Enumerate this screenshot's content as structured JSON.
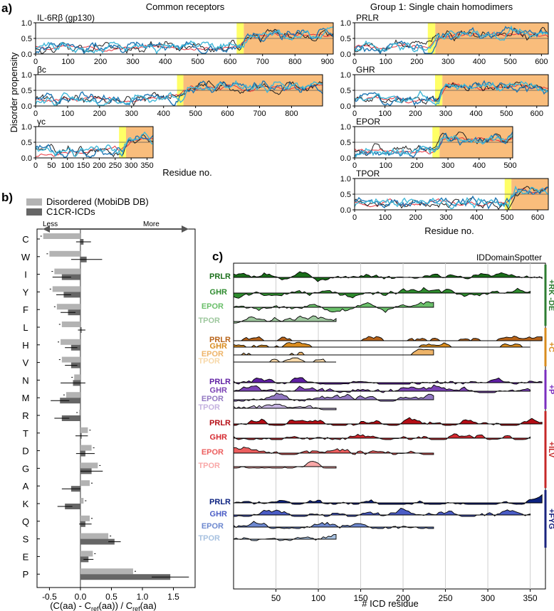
{
  "panel_a": {
    "label": "a)",
    "left_title": "Common receptors",
    "right_title": "Group 1: Single chain homodimers",
    "y_axis_label": "Disorder propensity",
    "x_axis_label": "Residue no.",
    "chart_data": {
      "type": "line",
      "ylim": [
        0,
        1
      ],
      "y_ticks": [
        "0.0",
        "0.5",
        "1.0"
      ],
      "threshold": 0.5,
      "line_colors": [
        "#e8303a",
        "#1f1f1f",
        "#1f77b4",
        "#3fb7d8"
      ],
      "shade_colors": {
        "transmembrane": "#ffff66",
        "icd": "#f9bd7c"
      },
      "receptors": [
        {
          "name": "IL-6Rβ (gp130)",
          "length": 918,
          "tm_start": 620,
          "icd_start": 642,
          "x_ticks": [
            "0",
            "100",
            "200",
            "300",
            "400",
            "500",
            "600",
            "700",
            "800",
            "900"
          ]
        },
        {
          "name": "βc",
          "length": 897,
          "tm_start": 442,
          "icd_start": 462,
          "x_ticks": [
            "0",
            "100",
            "200",
            "300",
            "400",
            "500",
            "600",
            "700",
            "800"
          ]
        },
        {
          "name": "γc",
          "length": 369,
          "tm_start": 262,
          "icd_start": 284,
          "x_ticks": [
            "0",
            "50",
            "100",
            "150",
            "200",
            "250",
            "300",
            "350"
          ]
        },
        {
          "name": "PRLR",
          "length": 622,
          "tm_start": 235,
          "icd_start": 259,
          "x_ticks": [
            "0",
            "100",
            "200",
            "300",
            "400",
            "500",
            "600"
          ]
        },
        {
          "name": "GHR",
          "length": 638,
          "tm_start": 265,
          "icd_start": 289,
          "x_ticks": [
            "0",
            "100",
            "200",
            "300",
            "400",
            "500",
            "600"
          ]
        },
        {
          "name": "EPOR",
          "length": 508,
          "tm_start": 250,
          "icd_start": 273,
          "x_ticks": [
            "0",
            "100",
            "200",
            "300",
            "400",
            "500"
          ]
        },
        {
          "name": "TPOR",
          "length": 635,
          "tm_start": 492,
          "icd_start": 514,
          "x_ticks": [
            "0",
            "100",
            "200",
            "300",
            "400",
            "500",
            "600"
          ]
        }
      ]
    }
  },
  "panel_b": {
    "label": "b)",
    "legend": [
      {
        "label": "Disordered (MobiDB DB)",
        "color": "#b3b3b3"
      },
      {
        "label": "C1CR-ICDs",
        "color": "#666666"
      }
    ],
    "arrow_less": "Less",
    "arrow_more": "More",
    "x_axis_label": "(C(aa) - Cref(aa)) / Cref(aa)",
    "chart_data": {
      "type": "bar",
      "orientation": "horizontal",
      "xlim": [
        -0.7,
        1.85
      ],
      "x_ticks": [
        "-0.5",
        "0.0",
        "0.5",
        "1.0",
        "1.5"
      ],
      "categories": [
        "C",
        "W",
        "I",
        "Y",
        "F",
        "L",
        "H",
        "V",
        "N",
        "M",
        "R",
        "T",
        "D",
        "G",
        "A",
        "K",
        "Q",
        "S",
        "E",
        "P"
      ],
      "series": [
        {
          "name": "Disordered (MobiDB DB)",
          "values": [
            -0.6,
            -0.5,
            -0.42,
            -0.45,
            -0.38,
            -0.3,
            -0.32,
            -0.3,
            -0.1,
            -0.23,
            -0.02,
            0.12,
            0.18,
            0.28,
            0.15,
            0.05,
            0.15,
            0.45,
            0.2,
            0.85
          ]
        },
        {
          "name": "C1CR-ICDs",
          "values": [
            0.05,
            0.1,
            -0.3,
            -0.27,
            -0.2,
            0.02,
            -0.15,
            -0.15,
            -0.12,
            -0.33,
            -0.3,
            0.02,
            0.08,
            0.18,
            -0.15,
            -0.25,
            0.08,
            0.55,
            0.13,
            1.45
          ],
          "errors": [
            0.12,
            0.25,
            0.15,
            0.12,
            0.12,
            0.06,
            0.1,
            0.1,
            0.2,
            0.15,
            0.12,
            0.1,
            0.15,
            0.18,
            0.15,
            0.12,
            0.1,
            0.1,
            0.08,
            0.3
          ]
        }
      ]
    }
  },
  "panel_c": {
    "label": "c)",
    "tool_name": "IDDomainSpotter",
    "x_axis_label": "# ICD residue",
    "chart_data": {
      "type": "area",
      "xlim": [
        0,
        368
      ],
      "x_ticks": [
        "50",
        "100",
        "150",
        "200",
        "250",
        "300",
        "350"
      ],
      "receptor_lengths": {
        "PRLR": 364,
        "GHR": 350,
        "EPOR": 236,
        "TPOR": 121
      },
      "groups": [
        {
          "name": "+RK -DE",
          "colors": [
            "#1a6e1a",
            "#2e8b2e",
            "#6abf6a",
            "#9ec89e"
          ],
          "side_color": "#2e7d32"
        },
        {
          "name": "+C",
          "colors": [
            "#b8641a",
            "#d98c1f",
            "#eeb469",
            "#f7d8a8"
          ],
          "side_color": "#d98c1f"
        },
        {
          "name": "+P",
          "colors": [
            "#5f1fa3",
            "#7b43b5",
            "#9278c2",
            "#c5b3e0"
          ],
          "side_color": "#7b2fbf"
        },
        {
          "name": "+ILV",
          "colors": [
            "#b50d15",
            "#d52a30",
            "#ec5e5e",
            "#f9a8a8"
          ],
          "side_color": "#c62828"
        },
        {
          "name": "+FYG",
          "colors": [
            "#0c2280",
            "#4a5cc6",
            "#6d88cf",
            "#a7c1e0"
          ],
          "side_color": "#1a237e"
        }
      ],
      "receptors": [
        "PRLR",
        "GHR",
        "EPOR",
        "TPOR"
      ]
    }
  }
}
